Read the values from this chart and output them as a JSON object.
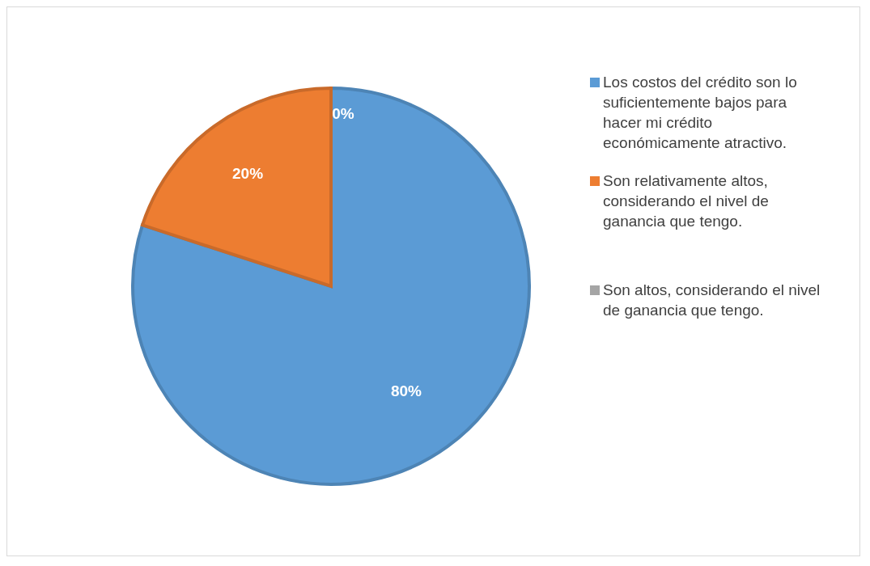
{
  "chart_data": {
    "type": "pie",
    "categories": [
      "Los costos del crédito son lo suficientemente bajos para hacer mi crédito económicamente atractivo.",
      "Son relativamente altos, considerando el nivel de ganancia que tengo.",
      "Son altos, considerando el nivel de ganancia que tengo."
    ],
    "values": [
      80,
      20,
      0
    ],
    "colors": [
      "#5b9bd5",
      "#ed7d31",
      "#a5a5a5"
    ],
    "value_labels": [
      "80%",
      "20%",
      "0%"
    ],
    "legend": "right"
  }
}
